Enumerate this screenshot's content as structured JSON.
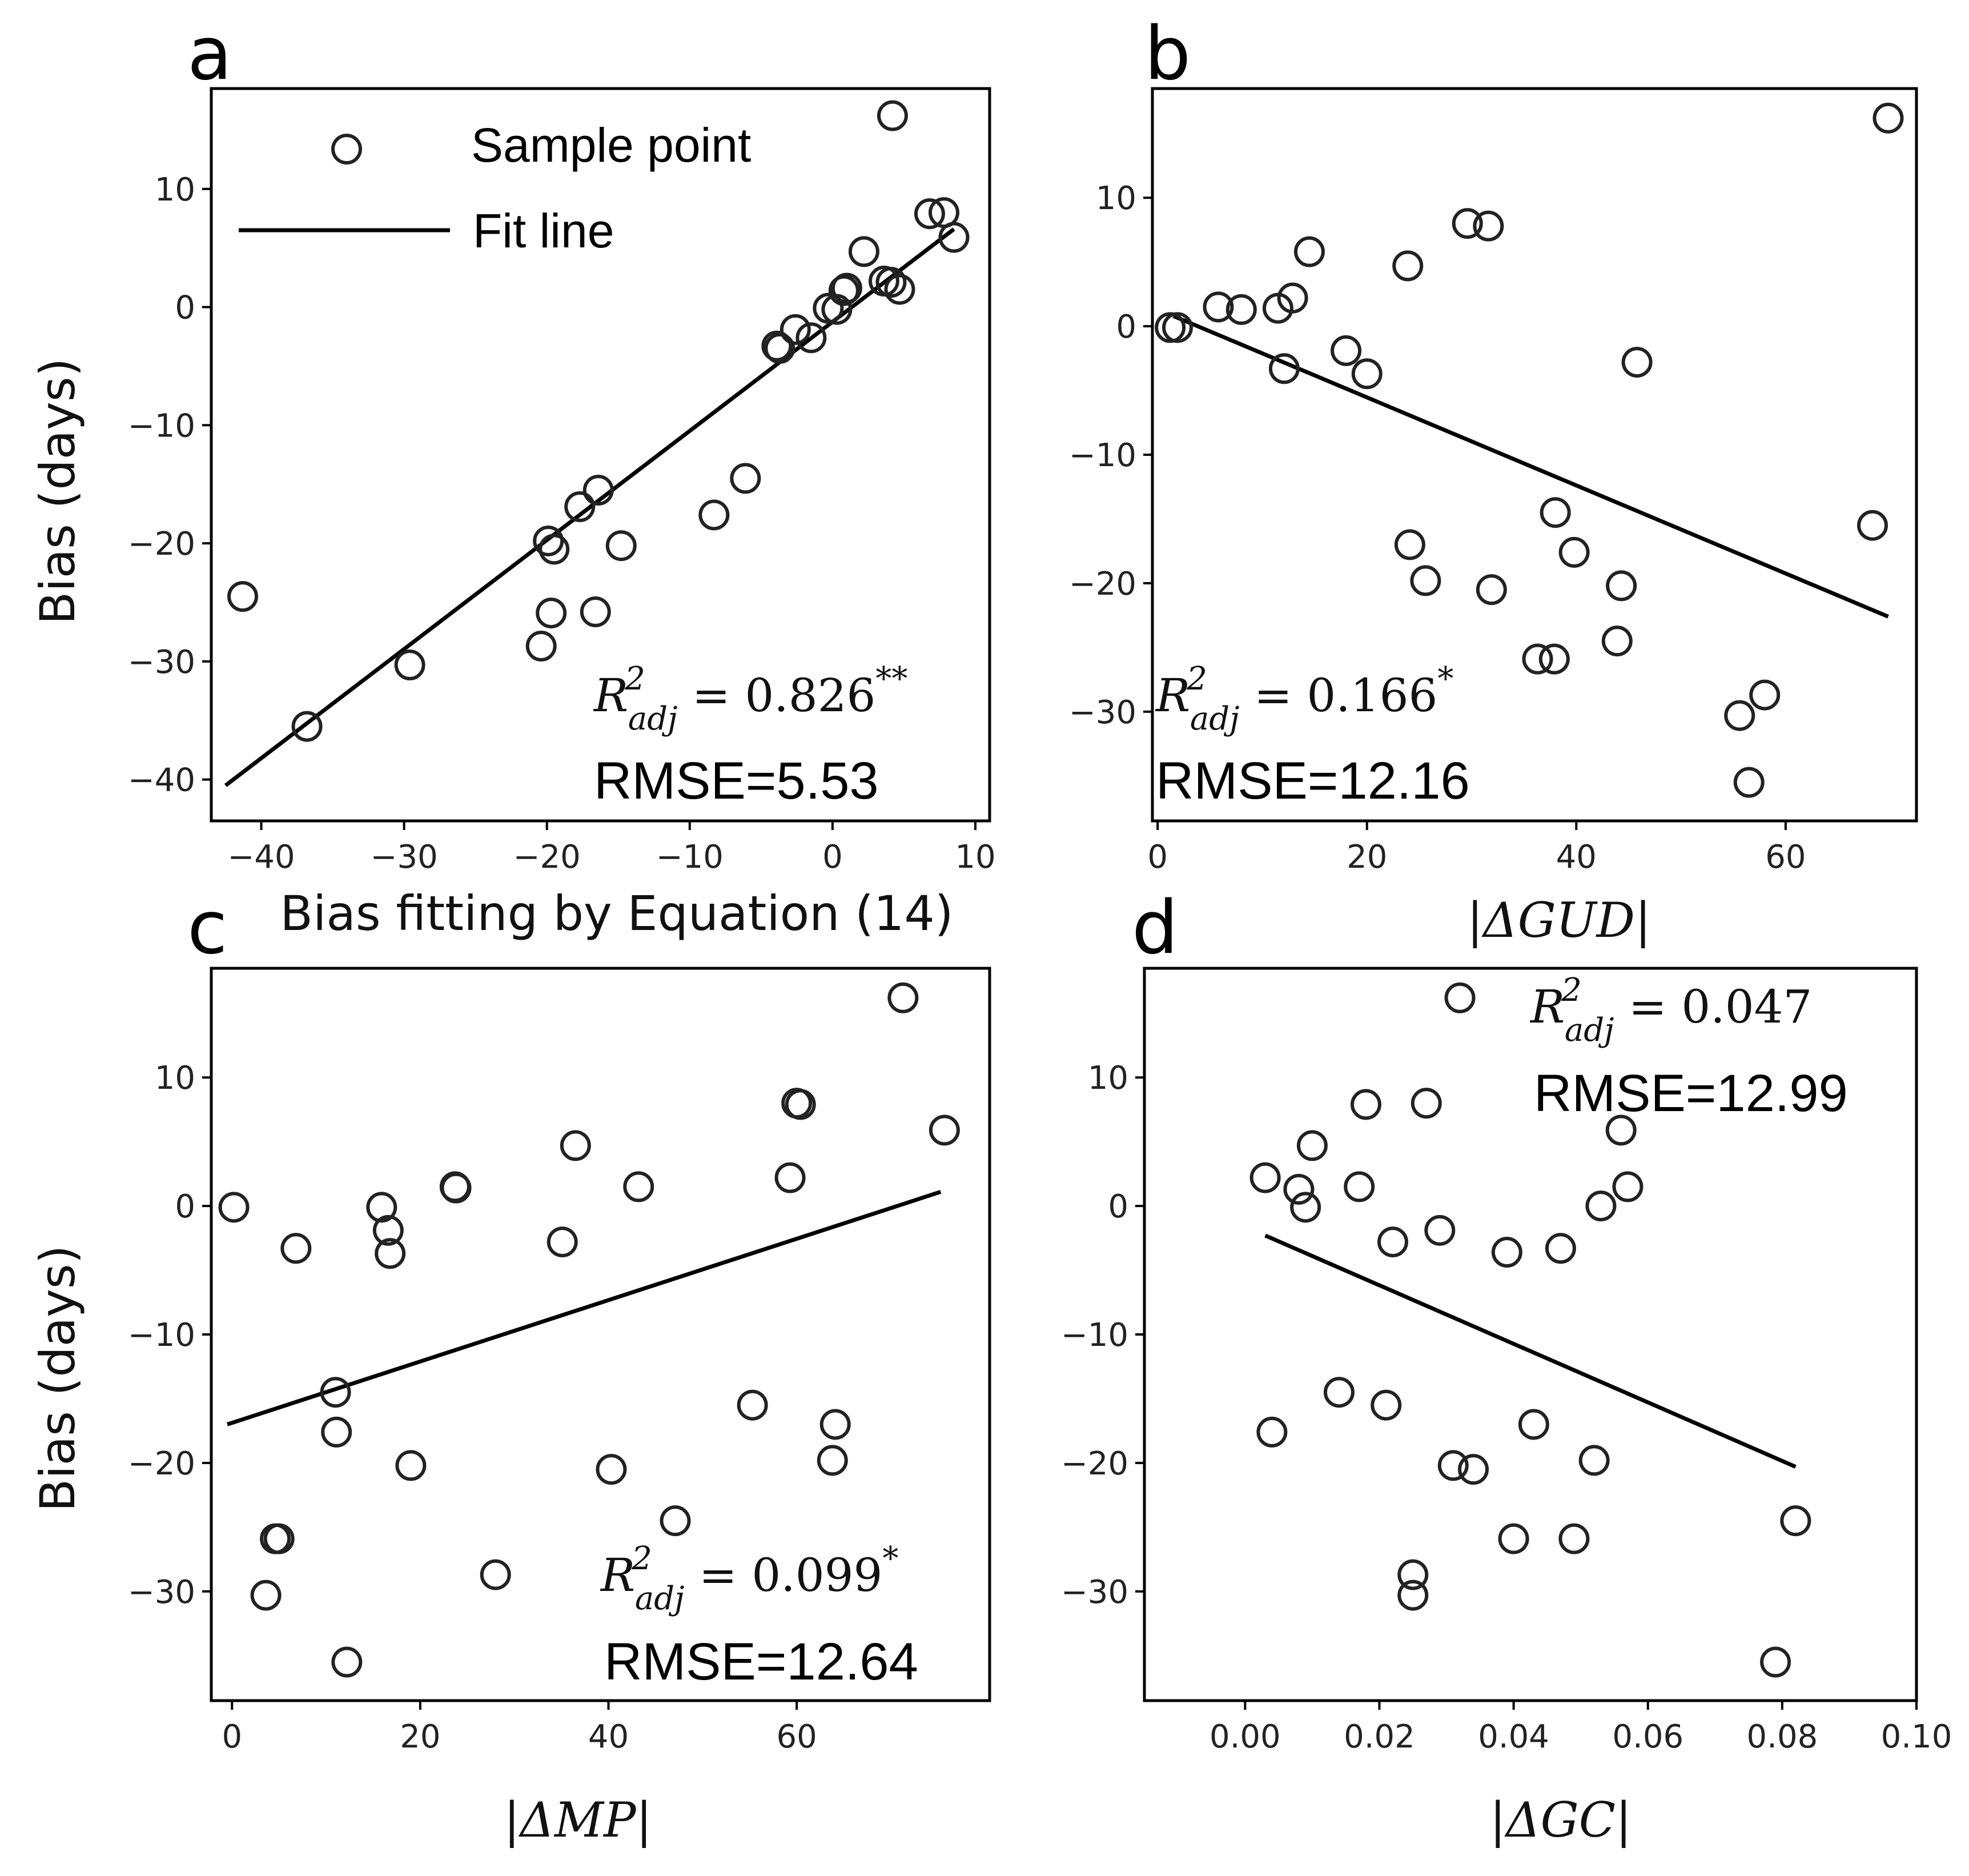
{
  "figure": {
    "panel_letters": [
      "a",
      "b",
      "c",
      "d"
    ]
  },
  "legend": {
    "sample_label": "Sample point",
    "fit_label": "Fit line"
  },
  "chart_data": [
    {
      "type": "scatter",
      "panel": "a",
      "xlabel": "Bias fitting by Equation (14)",
      "ylabel": "Bias (days)",
      "xlim": [
        -43.5,
        11
      ],
      "ylim": [
        -43.5,
        18.5
      ],
      "xticks": [
        -40,
        -30,
        -20,
        -10,
        0,
        10
      ],
      "yticks": [
        -40,
        -30,
        -20,
        -10,
        0,
        10
      ],
      "x": [
        -41.3,
        -36.8,
        -29.6,
        -20.4,
        -19.9,
        -19.5,
        -19.7,
        -17.7,
        -16.4,
        -14.8,
        -16.6,
        -8.3,
        -6.1,
        -3.9,
        -3.7,
        -2.6,
        -1.5,
        -0.3,
        0.3,
        0.8,
        1.0,
        2.2,
        3.6,
        4.1,
        4.7,
        6.8,
        7.8,
        8.5,
        4.2
      ],
      "y": [
        -24.5,
        -35.5,
        -30.3,
        -28.7,
        -19.8,
        -20.5,
        -25.9,
        -16.9,
        -15.5,
        -20.2,
        -25.8,
        -17.6,
        -14.5,
        -3.3,
        -3.5,
        -1.9,
        -2.6,
        -0.1,
        -0.2,
        1.4,
        1.6,
        4.7,
        2.2,
        2.1,
        1.5,
        7.9,
        8.0,
        5.9,
        16.2
      ],
      "fit": {
        "x": [
          -42.5,
          8.5
        ],
        "y": [
          -40.5,
          6.6
        ]
      },
      "r2_label": "R",
      "r2_sup": "2",
      "r2_sub": "adj",
      "r2_value": " = 0.826",
      "r2_sig": "**",
      "rmse": "RMSE=5.53",
      "legend_shown": true
    },
    {
      "type": "scatter",
      "panel": "b",
      "xlabel": "|ΔGUD|",
      "ylabel": "",
      "xlim": [
        -0.5,
        72.5
      ],
      "ylim": [
        -38.5,
        18.5
      ],
      "xticks": [
        0,
        20,
        40,
        60
      ],
      "yticks": [
        -30,
        -20,
        -10,
        0,
        10
      ],
      "x": [
        1.2,
        1.9,
        5.8,
        8.0,
        11.5,
        12.9,
        12.1,
        14.5,
        18.0,
        20.0,
        23.9,
        24.1,
        25.6,
        29.6,
        31.6,
        31.9,
        36.3,
        37.9,
        38.0,
        39.8,
        43.9,
        44.3,
        45.8,
        55.6,
        56.5,
        58.0,
        68.3,
        69.8
      ],
      "y": [
        -0.1,
        -0.1,
        1.5,
        1.3,
        1.4,
        2.2,
        -3.3,
        5.8,
        -1.9,
        -3.7,
        4.7,
        -17.0,
        -19.8,
        8.0,
        7.8,
        -20.5,
        -25.9,
        -25.9,
        -14.5,
        -17.6,
        -24.5,
        -20.2,
        -2.8,
        -30.3,
        -35.5,
        -28.7,
        -15.5,
        16.2
      ],
      "fit": {
        "x": [
          1.5,
          69.8
        ],
        "y": [
          0.8,
          -22.6
        ]
      },
      "r2_label": "R",
      "r2_sup": "2",
      "r2_sub": "adj",
      "r2_value": " = 0.166",
      "r2_sig": "*",
      "rmse": "RMSE=12.16",
      "legend_shown": false
    },
    {
      "type": "scatter",
      "panel": "c",
      "xlabel": "|ΔMP|",
      "ylabel": "Bias (days)",
      "xlim": [
        -2.2,
        80.5
      ],
      "ylim": [
        -38.5,
        18.5
      ],
      "xticks": [
        0,
        20,
        40,
        60
      ],
      "yticks": [
        -30,
        -20,
        -10,
        0,
        10
      ],
      "x": [
        0.2,
        3.6,
        4.6,
        5.0,
        6.8,
        11.0,
        11.1,
        12.2,
        15.9,
        16.6,
        16.8,
        19.0,
        23.7,
        23.8,
        28.0,
        35.1,
        36.5,
        40.3,
        43.2,
        47.1,
        55.3,
        59.3,
        60.0,
        60.4,
        63.8,
        64.1,
        71.3,
        75.7
      ],
      "y": [
        -0.1,
        -30.3,
        -25.9,
        -25.9,
        -3.3,
        -14.5,
        -17.6,
        -35.5,
        -0.1,
        -1.9,
        -3.7,
        -20.2,
        1.5,
        1.4,
        -28.7,
        -2.8,
        4.7,
        -20.5,
        1.5,
        -24.5,
        -15.5,
        2.2,
        8.0,
        7.9,
        -19.8,
        -17.0,
        16.2,
        5.9
      ],
      "fit": {
        "x": [
          -0.5,
          75.3
        ],
        "y": [
          -17.0,
          1.1
        ]
      },
      "r2_label": "R",
      "r2_sup": "2",
      "r2_sub": "adj",
      "r2_value": " = 0.099",
      "r2_sig": "*",
      "rmse": "RMSE=12.64",
      "legend_shown": false
    },
    {
      "type": "scatter",
      "panel": "d",
      "xlabel": "|ΔGC|",
      "ylabel": "",
      "xlim": [
        -0.015,
        0.1
      ],
      "ylim": [
        -38.5,
        18.5
      ],
      "xticks": [
        0.0,
        0.02,
        0.04,
        0.06,
        0.08,
        0.1
      ],
      "xtick_labels": [
        "0.00",
        "0.02",
        "0.04",
        "0.06",
        "0.08",
        "0.10"
      ],
      "yticks": [
        -30,
        -20,
        -10,
        0,
        10
      ],
      "x": [
        0.003,
        0.004,
        0.008,
        0.009,
        0.01,
        0.014,
        0.017,
        0.018,
        0.021,
        0.022,
        0.025,
        0.025,
        0.027,
        0.029,
        0.031,
        0.032,
        0.034,
        0.039,
        0.04,
        0.043,
        0.047,
        0.049,
        0.052,
        0.053,
        0.056,
        0.057,
        0.079,
        0.082
      ],
      "y": [
        2.2,
        -17.6,
        1.3,
        -0.1,
        4.7,
        -14.5,
        1.5,
        7.9,
        -15.5,
        -2.8,
        -28.7,
        -30.3,
        8.0,
        -1.9,
        -20.2,
        16.2,
        -20.5,
        -3.6,
        -25.9,
        -17.0,
        -3.3,
        -25.9,
        -19.8,
        0.0,
        5.9,
        1.5,
        -35.5,
        -24.5
      ],
      "fit": {
        "x": [
          0.003,
          0.082
        ],
        "y": [
          -2.3,
          -20.3
        ]
      },
      "r2_label": "R",
      "r2_sup": "2",
      "r2_sub": "adj",
      "r2_value": " = 0.047",
      "r2_sig": "",
      "rmse": "RMSE=12.99",
      "legend_shown": false
    }
  ]
}
